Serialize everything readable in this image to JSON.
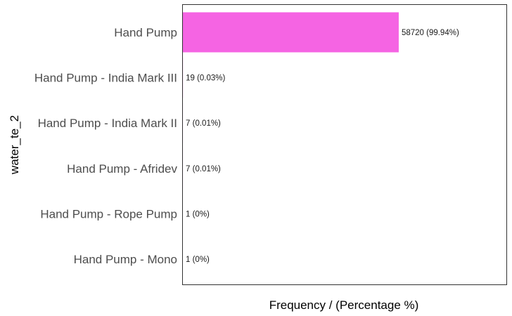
{
  "chart_data": {
    "type": "bar",
    "orientation": "horizontal",
    "categories": [
      "Hand Pump",
      "Hand Pump - India Mark III",
      "Hand Pump - India Mark II",
      "Hand Pump - Afridev",
      "Hand Pump - Rope Pump",
      "Hand Pump - Mono"
    ],
    "values": [
      58720,
      19,
      7,
      7,
      1,
      1
    ],
    "data_labels": [
      "58720 (99.94%)",
      "19 (0.03%)",
      "7 (0.01%)",
      "7 (0.01%)",
      "1 (0%)",
      "1 (0%)"
    ],
    "xlabel": "Frequency / (Percentage %)",
    "ylabel": "water_te_2",
    "xlim": [
      0,
      88000
    ],
    "bar_color": "#f564e3",
    "grid": false,
    "legend": "none"
  }
}
